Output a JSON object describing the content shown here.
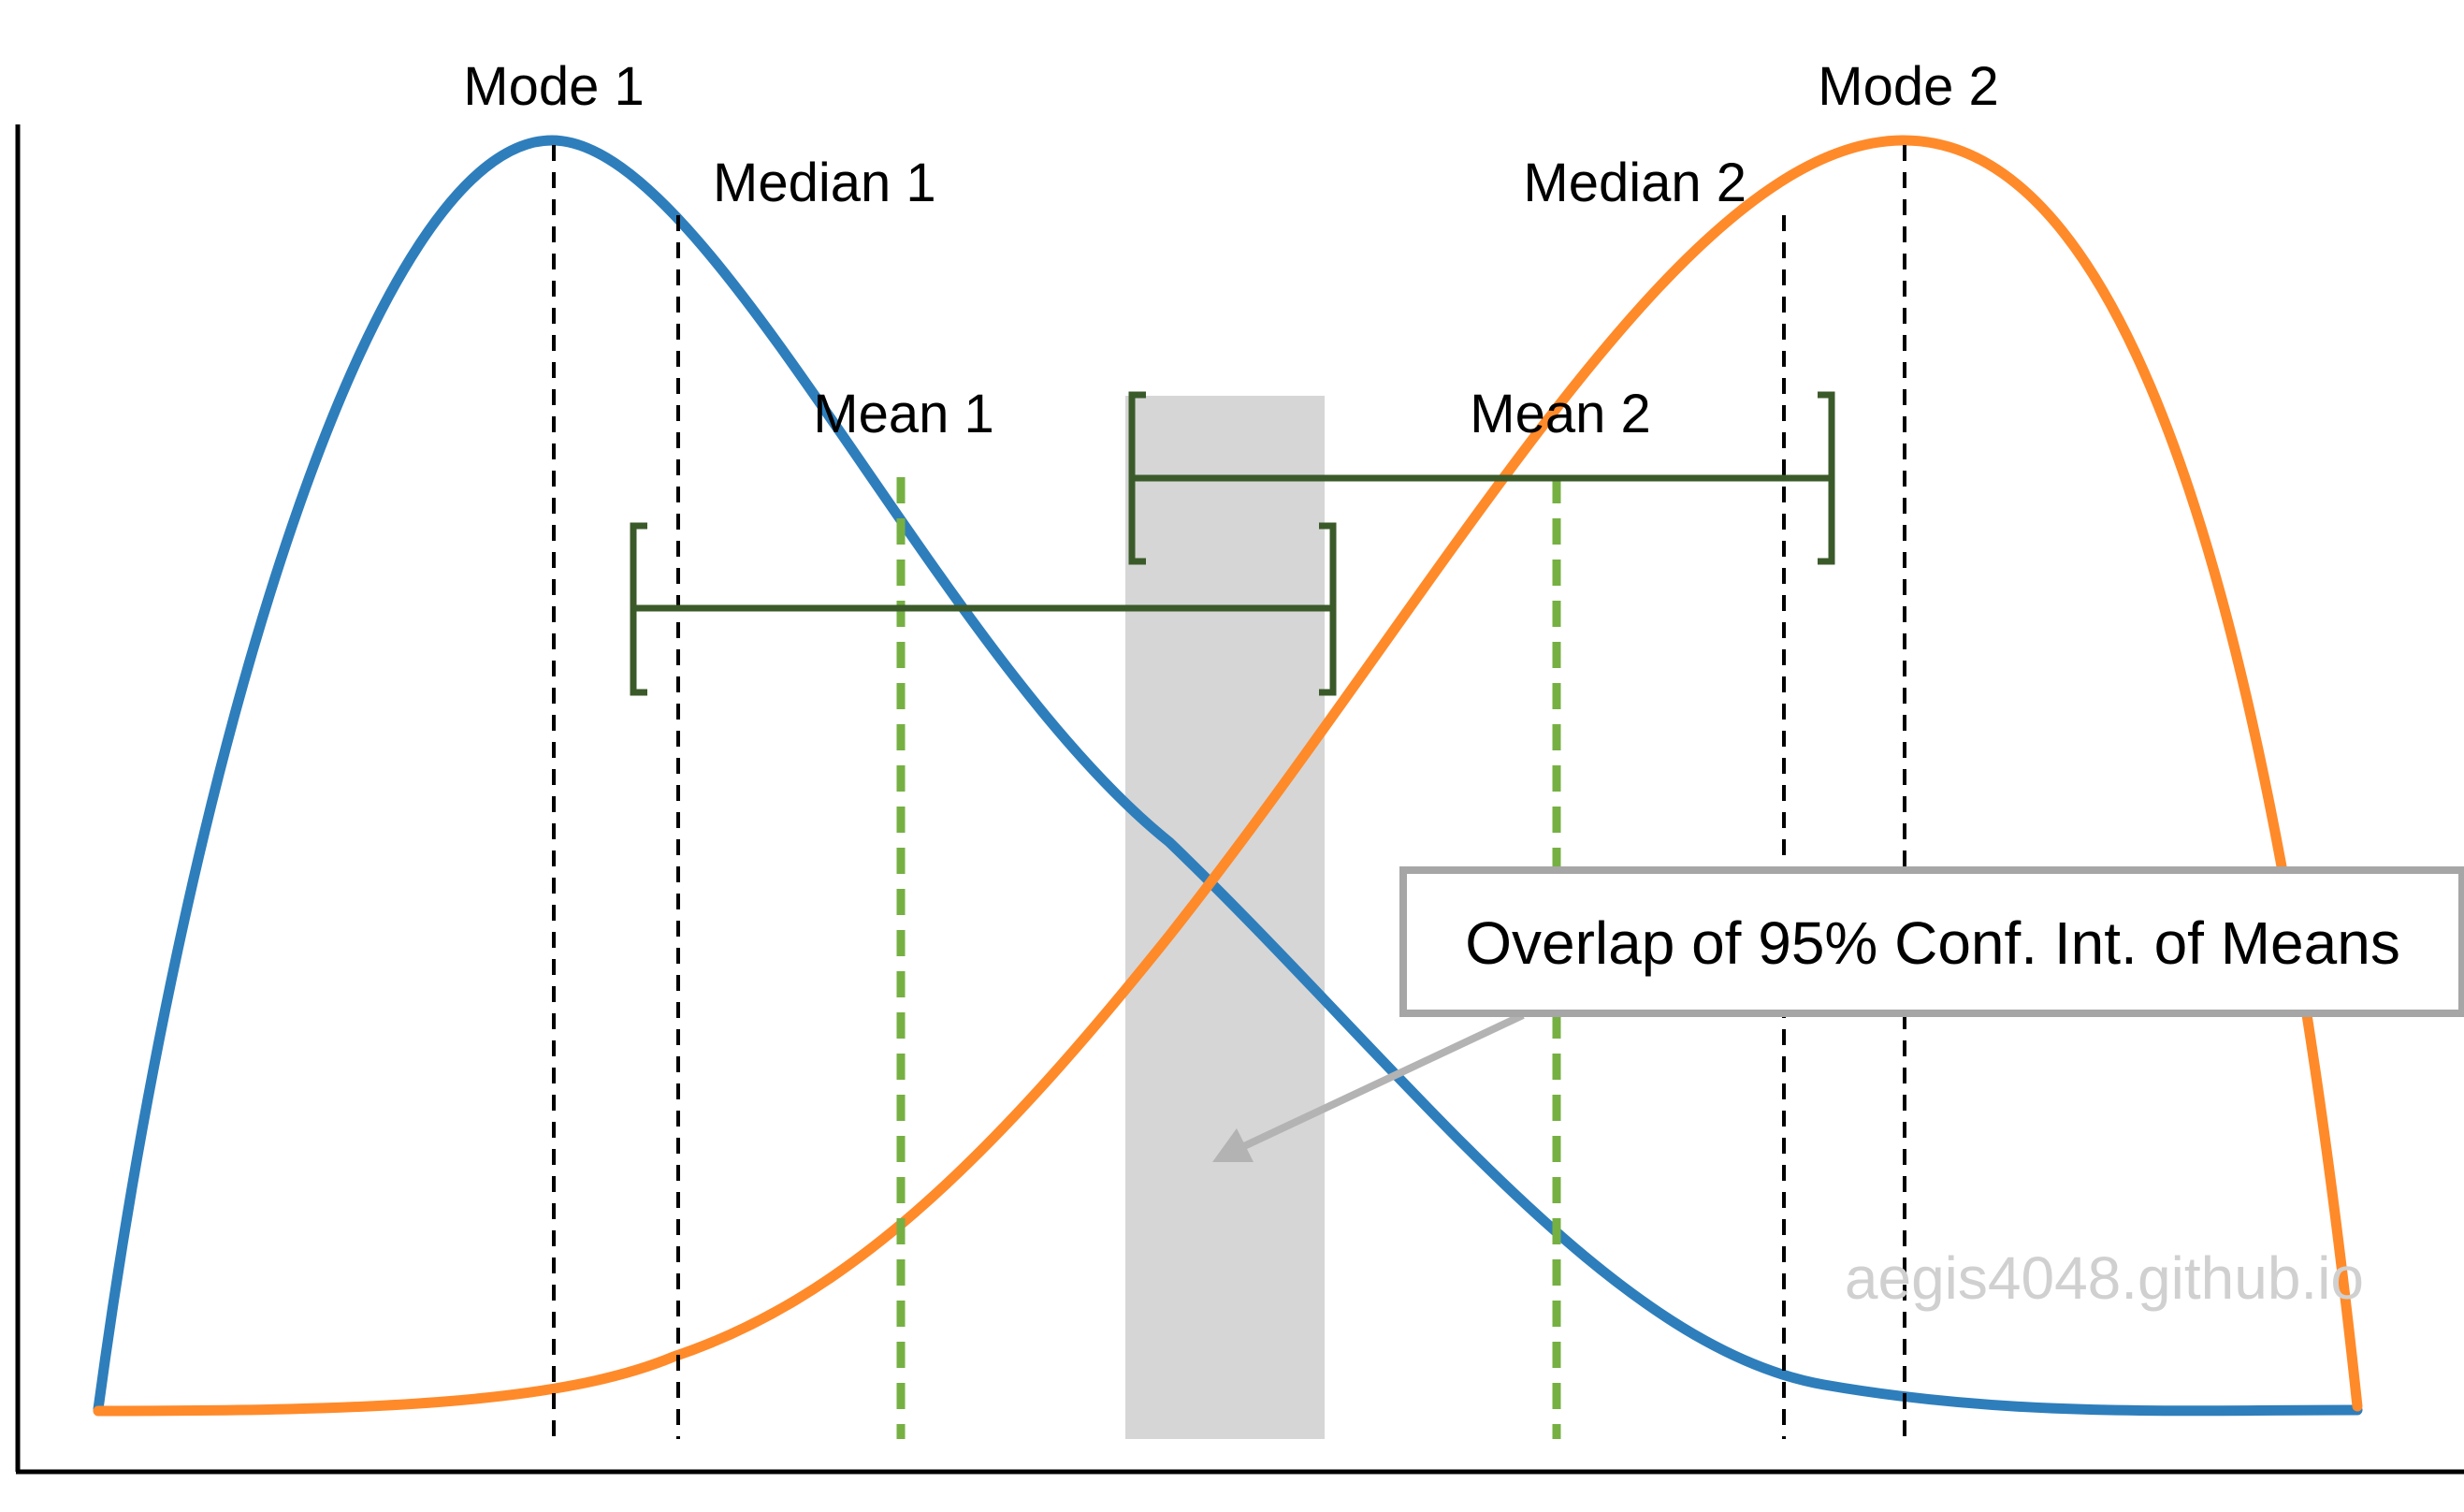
{
  "labels": {
    "mode1": "Mode 1",
    "mode2": "Mode 2",
    "median1": "Median 1",
    "median2": "Median 2",
    "mean1": "Mean 1",
    "mean2": "Mean 2"
  },
  "callout": "Overlap of 95% Conf. Int. of Means",
  "watermark": "aegis4048.github.io",
  "colors": {
    "dist1": "#2e7ebc",
    "dist2": "#ff8a2a",
    "ci": "#3b5a2a",
    "mean_line": "#76b043",
    "overlap_region": "#d6d6d6",
    "arrow": "#b3b3b3"
  }
}
